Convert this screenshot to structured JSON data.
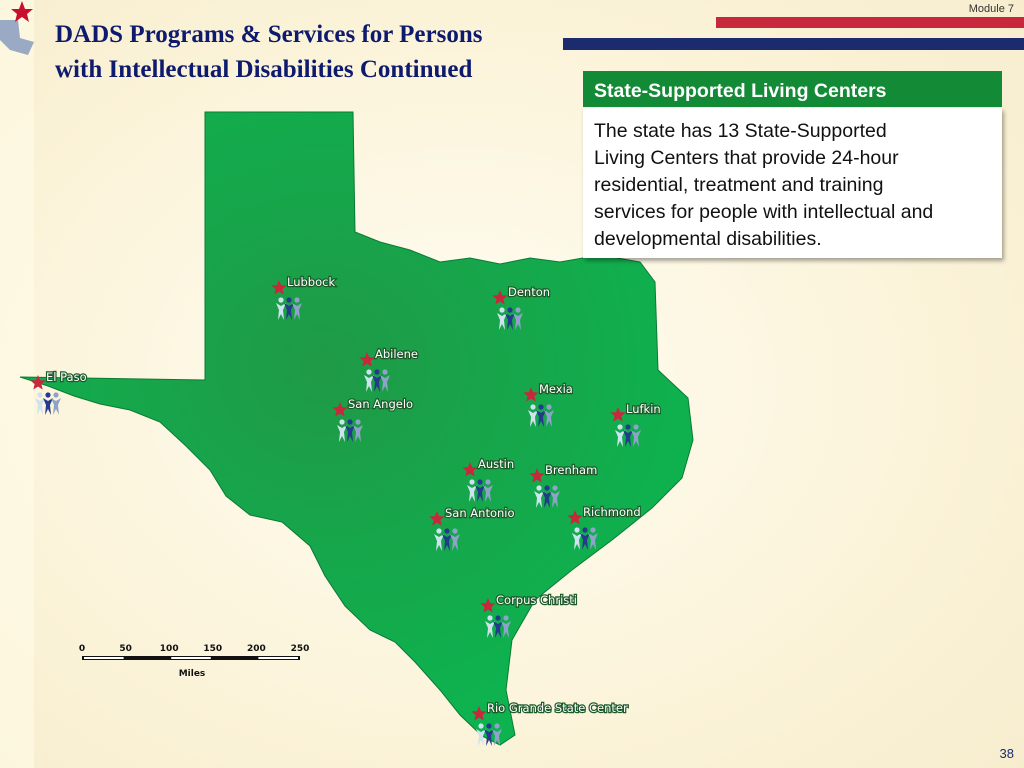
{
  "header": {
    "module": "Module 7",
    "title": [
      "DADS Programs & Services for Persons",
      "with Intellectual Disabilities Continued"
    ]
  },
  "info_box": {
    "title": "State-Supported Living Centers",
    "body": [
      "The state has 13 State-Supported",
      "Living Centers that provide 24-hour",
      "residential, treatment and training",
      "services for people with intellectual and",
      "developmental disabilities."
    ]
  },
  "map": {
    "cities": [
      "Lubbock",
      "Denton",
      "Abilene",
      "El Paso",
      "San Angelo",
      "Mexia",
      "Lufkin",
      "Austin",
      "Brenham",
      "San Antonio",
      "Richmond",
      "Corpus Christi",
      "Rio Grande State Center"
    ],
    "scale": {
      "ticks": [
        0,
        50,
        100,
        150,
        200,
        250
      ],
      "unit": "Miles"
    }
  },
  "page_number": 38
}
